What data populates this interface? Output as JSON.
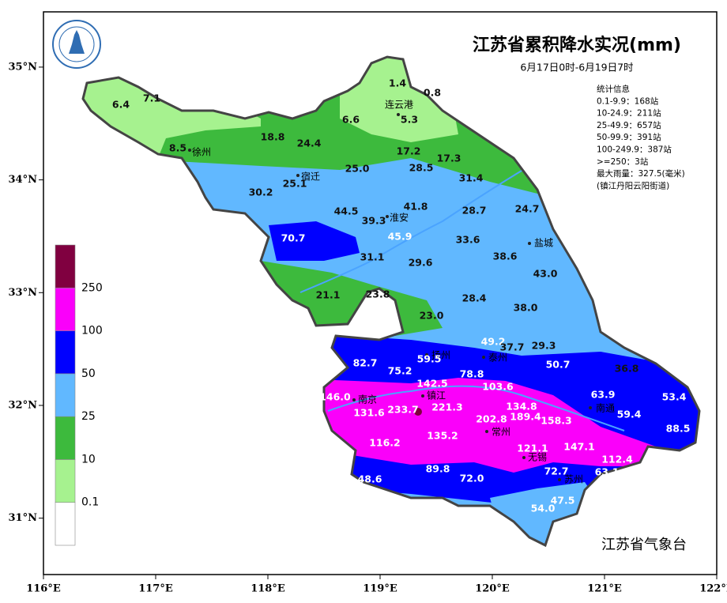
{
  "header": {
    "title": "江苏省累积降水实况(mm)",
    "subtitle": "6月17日0时-6月19日7时"
  },
  "stats": [
    "统计信息",
    "0.1-9.9：168站",
    "10-24.9：211站",
    "25-49.9：657站",
    "50-99.9：391站",
    "100-249.9：387站",
    ">=250：3站",
    "最大雨量：327.5(毫米)",
    "(镇江丹阳云阳街道)"
  ],
  "legend": {
    "colors": [
      "#ffffff",
      "#a6f28f",
      "#3dba3d",
      "#61b8ff",
      "#0000ff",
      "#fa00fa",
      "#800040"
    ],
    "labels": [
      0.1,
      10,
      25,
      50,
      100,
      250
    ]
  },
  "axes": {
    "xlim": [
      116,
      122
    ],
    "ylim": [
      30.5,
      35.49
    ],
    "xticks": [
      {
        "value": 116,
        "label": "116°E"
      },
      {
        "value": 117,
        "label": "117°E"
      },
      {
        "value": 118,
        "label": "118°E"
      },
      {
        "value": 119,
        "label": "119°E"
      },
      {
        "value": 120,
        "label": "120°E"
      },
      {
        "value": 121,
        "label": "121°E"
      },
      {
        "value": 122,
        "label": "122°E"
      }
    ],
    "yticks": [
      {
        "value": 31,
        "label": "31°N"
      },
      {
        "value": 32,
        "label": "32°N"
      },
      {
        "value": 33,
        "label": "33°N"
      },
      {
        "value": 34,
        "label": "34°N"
      },
      {
        "value": 35,
        "label": "35°N"
      }
    ]
  },
  "cities": [
    "连云港",
    "徐州",
    "宿迁",
    "淮安",
    "盐城",
    "扬州",
    "泰州",
    "南京",
    "镇江",
    "常州",
    "无锡",
    "苏州",
    "南通"
  ],
  "rainfall": [
    "6.4",
    "7.1",
    "1.4",
    "0.8",
    "5.3",
    "6.6",
    "8.5",
    "18.8",
    "24.4",
    "17.2",
    "17.3",
    "28.5",
    "25.0",
    "31.4",
    "25.1",
    "30.2",
    "41.8",
    "44.5",
    "28.7",
    "24.7",
    "39.3",
    "70.7",
    "45.9",
    "33.6",
    "31.1",
    "29.6",
    "38.6",
    "43.0",
    "21.1",
    "23.8",
    "28.4",
    "38.0",
    "23.0",
    "49.2",
    "37.7",
    "29.3",
    "82.7",
    "75.2",
    "59.5",
    "50.7",
    "36.8",
    "78.8",
    "142.5",
    "103.6",
    "63.9",
    "53.4",
    "146.0",
    "233.7",
    "221.3",
    "131.6",
    "134.8",
    "202.8",
    "189.4",
    "158.3",
    "59.4",
    "88.5",
    "135.2",
    "116.2",
    "147.1",
    "121.1",
    "112.4",
    "89.8",
    "72.0",
    "72.7",
    "63.1",
    "48.6",
    "47.5",
    "54.0"
  ],
  "footer": "江苏省气象台"
}
